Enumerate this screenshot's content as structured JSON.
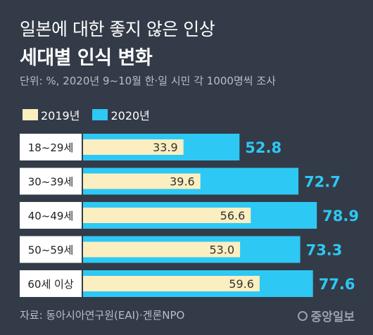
{
  "header": {
    "title": "일본에 대한 좋지 않은 인상",
    "subtitle": "세대별 인식 변화",
    "unit_note": "단위: %, 2020년 9~10월 한·일 시민 각 1000명씩 조사"
  },
  "colors": {
    "background": "#333b48",
    "series_2019": "#fbeec0",
    "series_2020": "#2ec8f4",
    "value_2020_text": "#2ec8f4",
    "value_2019_text": "#333333"
  },
  "chart_data": {
    "type": "bar",
    "orientation": "horizontal",
    "overlapping": true,
    "categories": [
      "18~29세",
      "30~39세",
      "40~49세",
      "50~59세",
      "60세 이상"
    ],
    "series": [
      {
        "name": "2019년",
        "values": [
          33.9,
          39.6,
          56.6,
          53.0,
          59.6
        ]
      },
      {
        "name": "2020년",
        "values": [
          52.8,
          72.7,
          78.9,
          73.3,
          77.6
        ]
      }
    ],
    "value_labels_2019": [
      "33.9",
      "39.6",
      "56.6",
      "53.0",
      "59.6"
    ],
    "value_labels_2020": [
      "52.8",
      "72.7",
      "78.9",
      "73.3",
      "77.6"
    ],
    "legend_placement": "top-left",
    "grid": false
  },
  "footer": {
    "source": "자료: 동아시아연구원(EAI)·겐론NPO",
    "logo_text": "중앙일보",
    "logo_icon": "joongang-circle-icon"
  }
}
